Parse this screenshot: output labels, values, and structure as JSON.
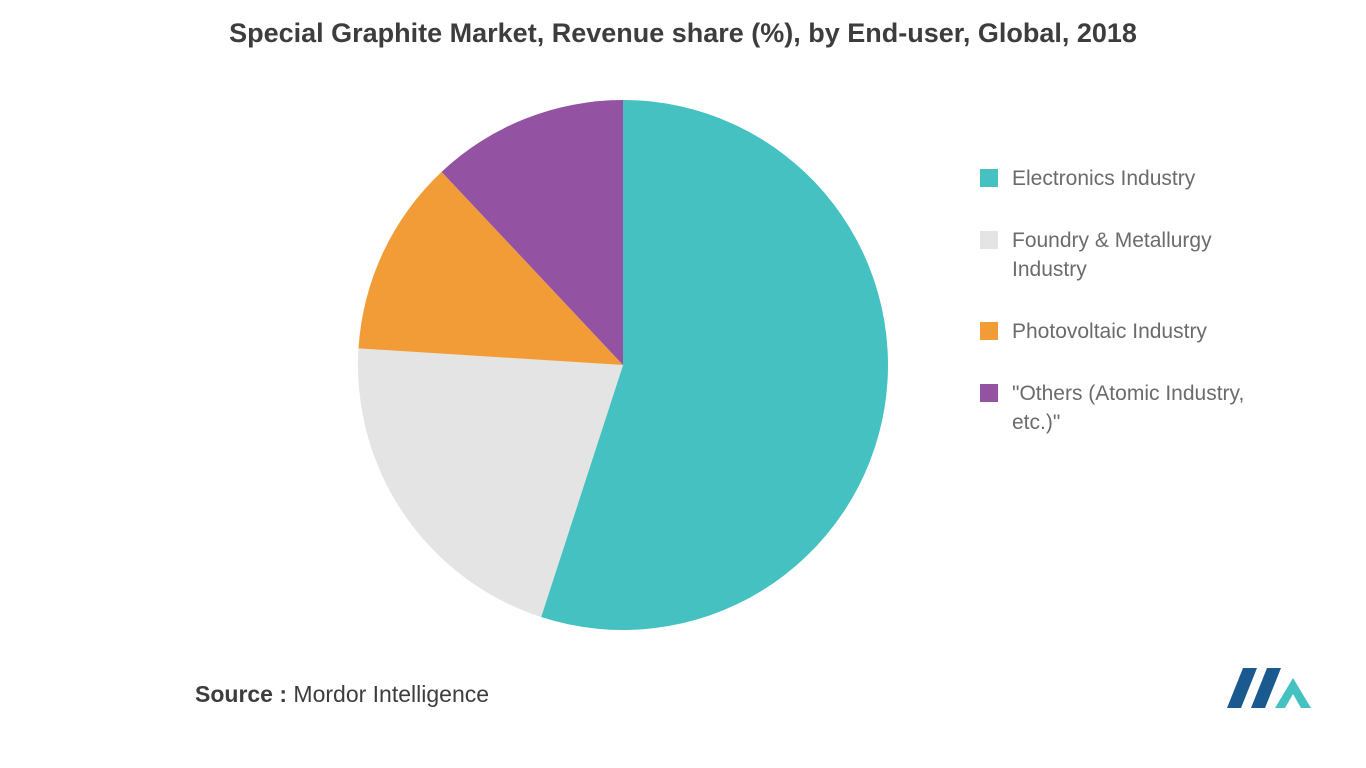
{
  "title": "Special Graphite Market, Revenue share (%), by End-user, Global, 2018",
  "chart": {
    "type": "pie",
    "background_color": "#ffffff",
    "slices": [
      {
        "label": "Electronics Industry",
        "value": 55,
        "color": "#45c1c1"
      },
      {
        "label": "Foundry & Metallurgy Industry",
        "value": 21,
        "color": "#e4e4e4"
      },
      {
        "label": "Photovoltaic Industry",
        "value": 12,
        "color": "#f19c36"
      },
      {
        "label": "\"Others (Atomic Industry, etc.)\"",
        "value": 12,
        "color": "#9452a3"
      }
    ],
    "title_fontsize": 27,
    "legend_fontsize": 21,
    "legend_text_color": "#6b6b6b",
    "pie_radius": 265,
    "start_angle_deg": -90
  },
  "footer": {
    "source_label": "Source :",
    "source_text": " Mordor Intelligence"
  },
  "logo": {
    "bar_color": "#1b5a8f",
    "arrow_color": "#45c1c1"
  }
}
